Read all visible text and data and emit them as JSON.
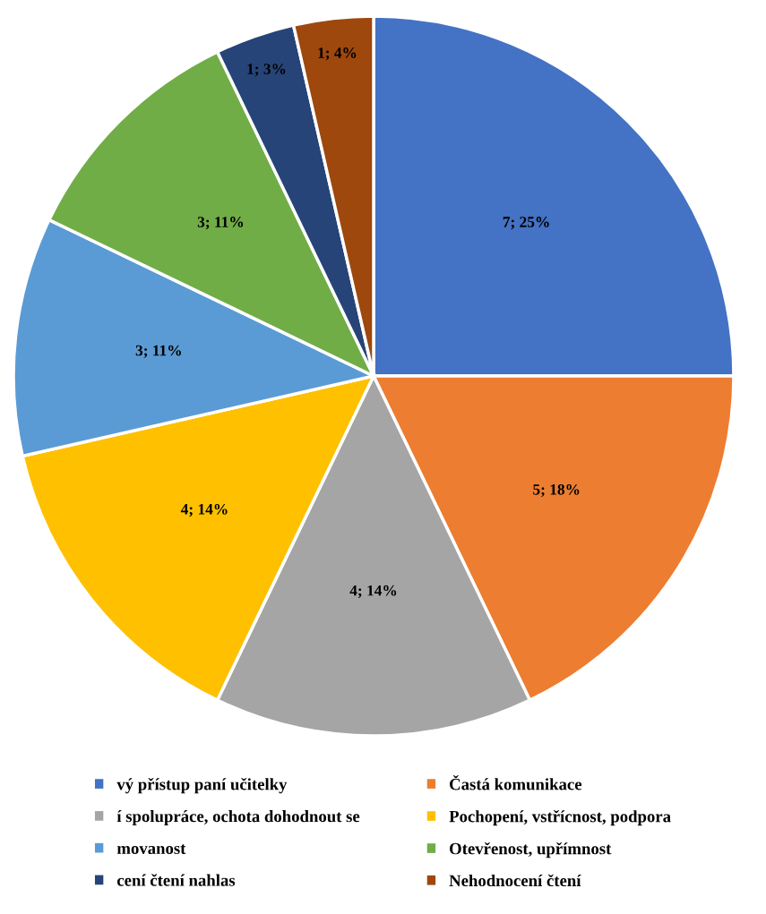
{
  "chart_data": {
    "type": "pie",
    "categories": [
      "vý přístup paní učitelky",
      "Častá komunikace",
      "í spolupráce, ochota dohodnout se",
      "Pochopení, vstřícnost, podpora",
      "movanost",
      "Otevřenost, upřímnost",
      "cení čtení nahlas",
      "Nehodnocení čtení"
    ],
    "values": [
      7,
      5,
      4,
      4,
      3,
      3,
      1,
      1
    ],
    "value_labels": [
      "7; 25%",
      "5; 18%",
      "4; 14%",
      "4; 14%",
      "3; 11%",
      "3; 11%",
      "1; 3%",
      "1; 4%"
    ],
    "colors": [
      "#4472c4",
      "#ed7d31",
      "#a5a5a5",
      "#ffc000",
      "#5b9bd5",
      "#70ad47",
      "#264478",
      "#9e480e"
    ],
    "legend": "bottom"
  }
}
